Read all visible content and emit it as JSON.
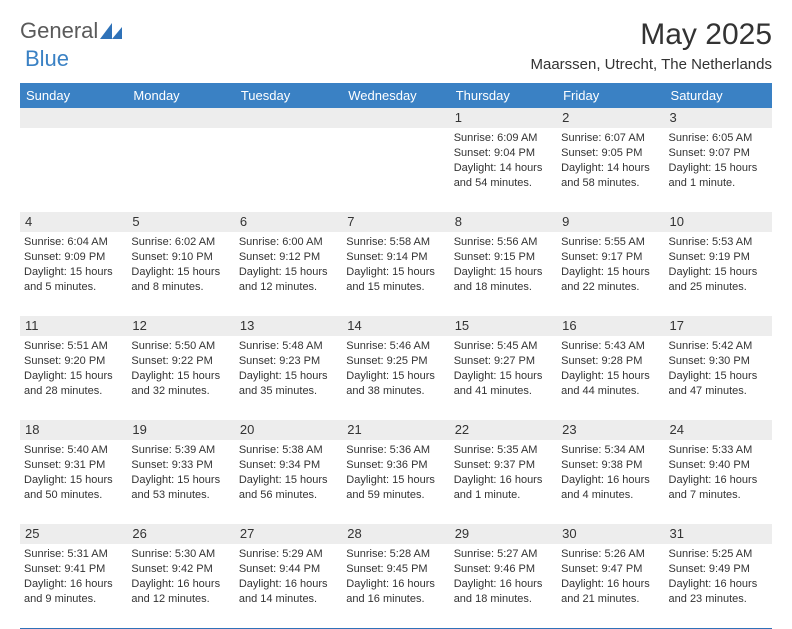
{
  "logo": {
    "part1": "General",
    "part2": "Blue"
  },
  "title": "May 2025",
  "location": "Maarssen, Utrecht, The Netherlands",
  "style": {
    "header_bg": "#3a81c4",
    "header_text": "#ffffff",
    "daynum_bg": "#ededed",
    "divider": "#2f72b8",
    "text": "#333333",
    "title_fontsize": 30,
    "location_fontsize": 15,
    "weekday_fontsize": 13,
    "body_fontsize": 11
  },
  "weekdays": [
    "Sunday",
    "Monday",
    "Tuesday",
    "Wednesday",
    "Thursday",
    "Friday",
    "Saturday"
  ],
  "weeks": [
    [
      {
        "n": "",
        "lines": []
      },
      {
        "n": "",
        "lines": []
      },
      {
        "n": "",
        "lines": []
      },
      {
        "n": "",
        "lines": []
      },
      {
        "n": "1",
        "lines": [
          "Sunrise: 6:09 AM",
          "Sunset: 9:04 PM",
          "Daylight: 14 hours and 54 minutes."
        ]
      },
      {
        "n": "2",
        "lines": [
          "Sunrise: 6:07 AM",
          "Sunset: 9:05 PM",
          "Daylight: 14 hours and 58 minutes."
        ]
      },
      {
        "n": "3",
        "lines": [
          "Sunrise: 6:05 AM",
          "Sunset: 9:07 PM",
          "Daylight: 15 hours and 1 minute."
        ]
      }
    ],
    [
      {
        "n": "4",
        "lines": [
          "Sunrise: 6:04 AM",
          "Sunset: 9:09 PM",
          "Daylight: 15 hours and 5 minutes."
        ]
      },
      {
        "n": "5",
        "lines": [
          "Sunrise: 6:02 AM",
          "Sunset: 9:10 PM",
          "Daylight: 15 hours and 8 minutes."
        ]
      },
      {
        "n": "6",
        "lines": [
          "Sunrise: 6:00 AM",
          "Sunset: 9:12 PM",
          "Daylight: 15 hours and 12 minutes."
        ]
      },
      {
        "n": "7",
        "lines": [
          "Sunrise: 5:58 AM",
          "Sunset: 9:14 PM",
          "Daylight: 15 hours and 15 minutes."
        ]
      },
      {
        "n": "8",
        "lines": [
          "Sunrise: 5:56 AM",
          "Sunset: 9:15 PM",
          "Daylight: 15 hours and 18 minutes."
        ]
      },
      {
        "n": "9",
        "lines": [
          "Sunrise: 5:55 AM",
          "Sunset: 9:17 PM",
          "Daylight: 15 hours and 22 minutes."
        ]
      },
      {
        "n": "10",
        "lines": [
          "Sunrise: 5:53 AM",
          "Sunset: 9:19 PM",
          "Daylight: 15 hours and 25 minutes."
        ]
      }
    ],
    [
      {
        "n": "11",
        "lines": [
          "Sunrise: 5:51 AM",
          "Sunset: 9:20 PM",
          "Daylight: 15 hours and 28 minutes."
        ]
      },
      {
        "n": "12",
        "lines": [
          "Sunrise: 5:50 AM",
          "Sunset: 9:22 PM",
          "Daylight: 15 hours and 32 minutes."
        ]
      },
      {
        "n": "13",
        "lines": [
          "Sunrise: 5:48 AM",
          "Sunset: 9:23 PM",
          "Daylight: 15 hours and 35 minutes."
        ]
      },
      {
        "n": "14",
        "lines": [
          "Sunrise: 5:46 AM",
          "Sunset: 9:25 PM",
          "Daylight: 15 hours and 38 minutes."
        ]
      },
      {
        "n": "15",
        "lines": [
          "Sunrise: 5:45 AM",
          "Sunset: 9:27 PM",
          "Daylight: 15 hours and 41 minutes."
        ]
      },
      {
        "n": "16",
        "lines": [
          "Sunrise: 5:43 AM",
          "Sunset: 9:28 PM",
          "Daylight: 15 hours and 44 minutes."
        ]
      },
      {
        "n": "17",
        "lines": [
          "Sunrise: 5:42 AM",
          "Sunset: 9:30 PM",
          "Daylight: 15 hours and 47 minutes."
        ]
      }
    ],
    [
      {
        "n": "18",
        "lines": [
          "Sunrise: 5:40 AM",
          "Sunset: 9:31 PM",
          "Daylight: 15 hours and 50 minutes."
        ]
      },
      {
        "n": "19",
        "lines": [
          "Sunrise: 5:39 AM",
          "Sunset: 9:33 PM",
          "Daylight: 15 hours and 53 minutes."
        ]
      },
      {
        "n": "20",
        "lines": [
          "Sunrise: 5:38 AM",
          "Sunset: 9:34 PM",
          "Daylight: 15 hours and 56 minutes."
        ]
      },
      {
        "n": "21",
        "lines": [
          "Sunrise: 5:36 AM",
          "Sunset: 9:36 PM",
          "Daylight: 15 hours and 59 minutes."
        ]
      },
      {
        "n": "22",
        "lines": [
          "Sunrise: 5:35 AM",
          "Sunset: 9:37 PM",
          "Daylight: 16 hours and 1 minute."
        ]
      },
      {
        "n": "23",
        "lines": [
          "Sunrise: 5:34 AM",
          "Sunset: 9:38 PM",
          "Daylight: 16 hours and 4 minutes."
        ]
      },
      {
        "n": "24",
        "lines": [
          "Sunrise: 5:33 AM",
          "Sunset: 9:40 PM",
          "Daylight: 16 hours and 7 minutes."
        ]
      }
    ],
    [
      {
        "n": "25",
        "lines": [
          "Sunrise: 5:31 AM",
          "Sunset: 9:41 PM",
          "Daylight: 16 hours and 9 minutes."
        ]
      },
      {
        "n": "26",
        "lines": [
          "Sunrise: 5:30 AM",
          "Sunset: 9:42 PM",
          "Daylight: 16 hours and 12 minutes."
        ]
      },
      {
        "n": "27",
        "lines": [
          "Sunrise: 5:29 AM",
          "Sunset: 9:44 PM",
          "Daylight: 16 hours and 14 minutes."
        ]
      },
      {
        "n": "28",
        "lines": [
          "Sunrise: 5:28 AM",
          "Sunset: 9:45 PM",
          "Daylight: 16 hours and 16 minutes."
        ]
      },
      {
        "n": "29",
        "lines": [
          "Sunrise: 5:27 AM",
          "Sunset: 9:46 PM",
          "Daylight: 16 hours and 18 minutes."
        ]
      },
      {
        "n": "30",
        "lines": [
          "Sunrise: 5:26 AM",
          "Sunset: 9:47 PM",
          "Daylight: 16 hours and 21 minutes."
        ]
      },
      {
        "n": "31",
        "lines": [
          "Sunrise: 5:25 AM",
          "Sunset: 9:49 PM",
          "Daylight: 16 hours and 23 minutes."
        ]
      }
    ]
  ]
}
